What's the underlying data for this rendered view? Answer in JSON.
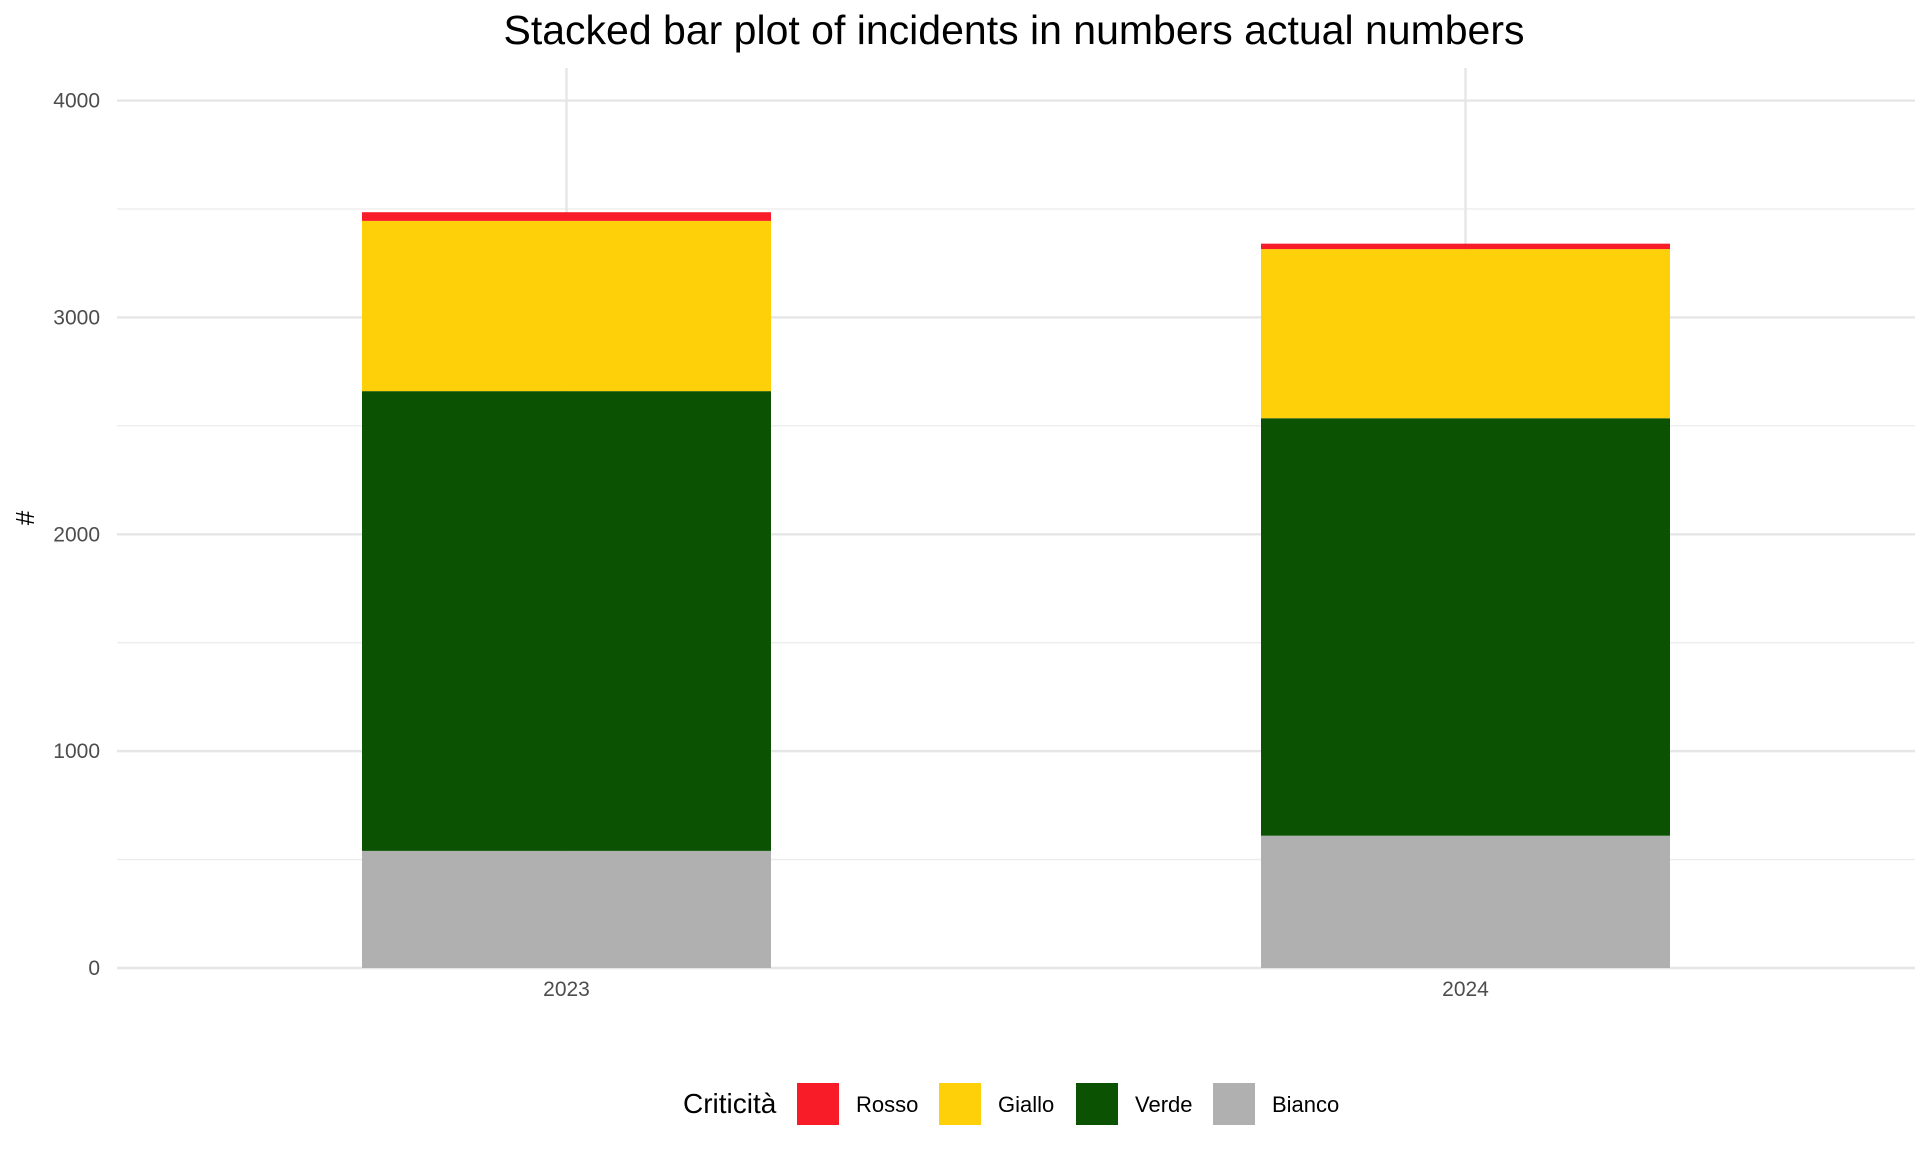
{
  "chart_data": {
    "type": "bar",
    "stacked": true,
    "title": "Stacked bar plot of incidents in numbers actual numbers",
    "xlabel": "",
    "ylabel": "#",
    "categories": [
      "2023",
      "2024"
    ],
    "ylim": [
      0,
      4150
    ],
    "yticks": [
      0,
      1000,
      2000,
      3000,
      4000
    ],
    "grid": true,
    "legend": {
      "title": "Criticità",
      "position": "bottom",
      "order": [
        "Rosso",
        "Giallo",
        "Verde",
        "Bianco"
      ]
    },
    "series": [
      {
        "name": "Bianco",
        "color": "#b0b0b0",
        "values": [
          540,
          610
        ]
      },
      {
        "name": "Verde",
        "color": "#0b5303",
        "values": [
          2120,
          1925
        ]
      },
      {
        "name": "Giallo",
        "color": "#fed00a",
        "values": [
          785,
          780
        ]
      },
      {
        "name": "Rosso",
        "color": "#f71c28",
        "values": [
          40,
          25
        ]
      }
    ]
  }
}
